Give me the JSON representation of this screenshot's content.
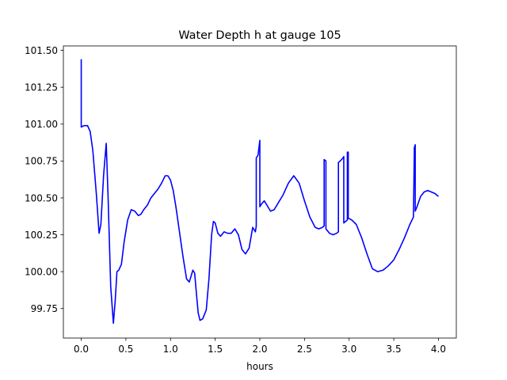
{
  "chart_data": {
    "type": "line",
    "title": "Water Depth h at gauge 105",
    "xlabel": "hours",
    "ylabel": "",
    "xlim": [
      -0.2,
      4.2
    ],
    "ylim": [
      99.55,
      101.53
    ],
    "xticks": [
      0.0,
      0.5,
      1.0,
      1.5,
      2.0,
      2.5,
      3.0,
      3.5,
      4.0
    ],
    "xtick_labels": [
      "0.0",
      "0.5",
      "1.0",
      "1.5",
      "2.0",
      "2.5",
      "3.0",
      "3.5",
      "4.0"
    ],
    "yticks": [
      99.75,
      100.0,
      100.25,
      100.5,
      100.75,
      101.0,
      101.25,
      101.5
    ],
    "ytick_labels": [
      "99.75",
      "100.00",
      "100.25",
      "100.50",
      "100.75",
      "101.00",
      "101.25",
      "101.50"
    ],
    "grid": false,
    "legend": "none",
    "line_color": "#0000ff",
    "series": [
      {
        "x": [
          0.0,
          0.0,
          0.0,
          0.03,
          0.07,
          0.1,
          0.13,
          0.17,
          0.2,
          0.22,
          0.25,
          0.28,
          0.3,
          0.33,
          0.36,
          0.38,
          0.4,
          0.42,
          0.45,
          0.48,
          0.52,
          0.56,
          0.6,
          0.64,
          0.67,
          0.7,
          0.74,
          0.78,
          0.82,
          0.86,
          0.9,
          0.94,
          0.97,
          1.0,
          1.03,
          1.06,
          1.1,
          1.14,
          1.18,
          1.21,
          1.23,
          1.25,
          1.27,
          1.29,
          1.31,
          1.33,
          1.36,
          1.4,
          1.43,
          1.46,
          1.48,
          1.5,
          1.53,
          1.56,
          1.6,
          1.64,
          1.68,
          1.72,
          1.76,
          1.8,
          1.84,
          1.88,
          1.92,
          1.95,
          1.96,
          1.96,
          1.98,
          2.0,
          2.0,
          2.02,
          2.05,
          2.08,
          2.12,
          2.16,
          2.2,
          2.26,
          2.32,
          2.38,
          2.44,
          2.5,
          2.56,
          2.62,
          2.66,
          2.7,
          2.72,
          2.72,
          2.74,
          2.74,
          2.78,
          2.82,
          2.86,
          2.88,
          2.88,
          2.9,
          2.93,
          2.94,
          2.94,
          2.96,
          2.98,
          2.98,
          2.99,
          2.99,
          3.0,
          3.0,
          3.03,
          3.08,
          3.14,
          3.2,
          3.26,
          3.32,
          3.38,
          3.44,
          3.5,
          3.56,
          3.62,
          3.68,
          3.72,
          3.73,
          3.73,
          3.74,
          3.74,
          3.76,
          3.8,
          3.84,
          3.88,
          3.92,
          3.96,
          4.0
        ],
        "y": [
          101.44,
          100.98,
          100.98,
          100.99,
          100.99,
          100.95,
          100.82,
          100.52,
          100.26,
          100.32,
          100.65,
          100.87,
          100.52,
          99.9,
          99.65,
          99.8,
          100.0,
          100.01,
          100.05,
          100.2,
          100.35,
          100.42,
          100.41,
          100.38,
          100.39,
          100.42,
          100.45,
          100.5,
          100.53,
          100.56,
          100.6,
          100.65,
          100.65,
          100.62,
          100.55,
          100.44,
          100.27,
          100.1,
          99.95,
          99.93,
          99.97,
          100.01,
          99.99,
          99.85,
          99.72,
          99.67,
          99.68,
          99.74,
          99.95,
          100.25,
          100.34,
          100.33,
          100.26,
          100.24,
          100.27,
          100.26,
          100.26,
          100.29,
          100.25,
          100.15,
          100.12,
          100.16,
          100.3,
          100.27,
          100.31,
          100.77,
          100.79,
          100.89,
          100.44,
          100.46,
          100.48,
          100.45,
          100.41,
          100.42,
          100.46,
          100.52,
          100.6,
          100.65,
          100.6,
          100.48,
          100.37,
          100.3,
          100.29,
          100.3,
          100.31,
          100.76,
          100.75,
          100.29,
          100.26,
          100.25,
          100.26,
          100.27,
          100.74,
          100.75,
          100.77,
          100.78,
          100.33,
          100.34,
          100.35,
          100.81,
          100.81,
          100.36,
          100.36,
          100.36,
          100.35,
          100.32,
          100.23,
          100.12,
          100.02,
          100.0,
          100.01,
          100.04,
          100.08,
          100.15,
          100.23,
          100.32,
          100.37,
          100.82,
          100.84,
          100.86,
          100.41,
          100.44,
          100.51,
          100.54,
          100.55,
          100.54,
          100.53,
          100.51
        ]
      }
    ]
  }
}
